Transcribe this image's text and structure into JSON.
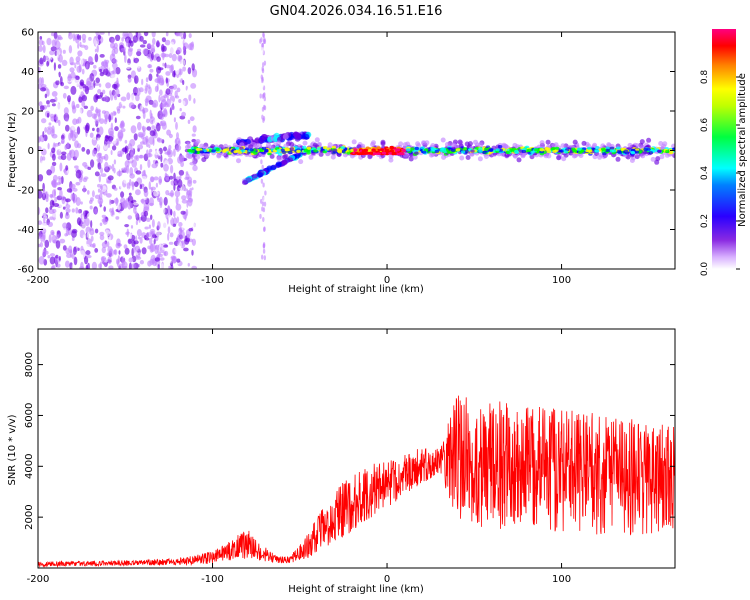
{
  "title": "GN04.2026.034.16.51.E16",
  "chart_data": [
    {
      "type": "heatmap",
      "xlabel": "Height of straight line (km)",
      "ylabel": "Frequency (Hz)",
      "xlim": [
        -200,
        165
      ],
      "ylim": [
        -60,
        60
      ],
      "xticks": [
        -200,
        -100,
        0,
        100
      ],
      "yticks": [
        -60,
        -40,
        -20,
        0,
        20,
        40,
        60
      ],
      "colorbar": {
        "label": "Normalized spectral amplitude",
        "range": [
          0,
          1
        ],
        "ticks": [
          0.0,
          0.2,
          0.4,
          0.6,
          0.8
        ],
        "colors": [
          "#ffffff",
          "#c080ff",
          "#6a00e0",
          "#0000ff",
          "#00ffff",
          "#00ff00",
          "#ffff00",
          "#ff8000",
          "#ff0000",
          "#ff0080"
        ]
      },
      "features": {
        "noise_region_x": [
          -200,
          -110
        ],
        "main_band": {
          "x": [
            -115,
            165
          ],
          "center_hz": 0,
          "half_width_hz": 4
        },
        "lower_branch": {
          "x": [
            -82,
            -50
          ],
          "freq_from": -16,
          "freq_to": -2
        },
        "upper_branch": {
          "x": [
            -85,
            -45
          ],
          "freq_from": 4,
          "freq_to": 8
        },
        "vertical_streak": {
          "x": -71,
          "freq_range": [
            -55,
            60
          ]
        },
        "peak_segment_x": [
          -20,
          10
        ]
      }
    },
    {
      "type": "line",
      "xlabel": "Height of straight line (km)",
      "ylabel": "SNR (10 * v/v)",
      "xlim": [
        -200,
        165
      ],
      "ylim": [
        0,
        9400
      ],
      "xticks": [
        -200,
        -100,
        0,
        100
      ],
      "yticks": [
        2000,
        4000,
        6000,
        8000
      ],
      "color": "#ff0000",
      "series": [
        {
          "x": [
            -200,
            -190,
            -180,
            -170,
            -160,
            -150,
            -140,
            -130,
            -120,
            -110,
            -100,
            -95,
            -90,
            -85,
            -80,
            -75,
            -70,
            -65,
            -60,
            -55,
            -50,
            -45,
            -40,
            -35,
            -30,
            -25,
            -20,
            -15,
            -10,
            -5,
            0,
            5,
            10,
            15,
            20,
            25,
            30,
            35,
            40,
            50,
            60,
            70,
            80,
            90,
            100,
            110,
            120,
            130,
            140,
            150,
            160,
            165
          ],
          "mean": [
            150,
            160,
            170,
            180,
            190,
            200,
            210,
            230,
            260,
            320,
            420,
            550,
            700,
            850,
            950,
            750,
            550,
            400,
            300,
            350,
            600,
            900,
            1300,
            1700,
            2000,
            2300,
            2500,
            2800,
            3000,
            3200,
            3300,
            3500,
            3700,
            3900,
            4000,
            4100,
            4200,
            4300,
            4300,
            4200,
            4100,
            4000,
            4000,
            3900,
            3800,
            3800,
            3700,
            3600,
            3600,
            3500,
            3400,
            3400
          ],
          "spread": [
            100,
            100,
            100,
            100,
            100,
            100,
            100,
            120,
            150,
            180,
            250,
            300,
            400,
            500,
            600,
            450,
            300,
            200,
            150,
            200,
            300,
            500,
            700,
            900,
            1000,
            1100,
            1100,
            1100,
            1100,
            1000,
            900,
            900,
            800,
            800,
            700,
            600,
            500,
            1500,
            2500,
            2500,
            2600,
            2500,
            2500,
            2400,
            2500,
            2400,
            2400,
            2300,
            2300,
            2300,
            2200,
            2200
          ]
        }
      ]
    }
  ]
}
